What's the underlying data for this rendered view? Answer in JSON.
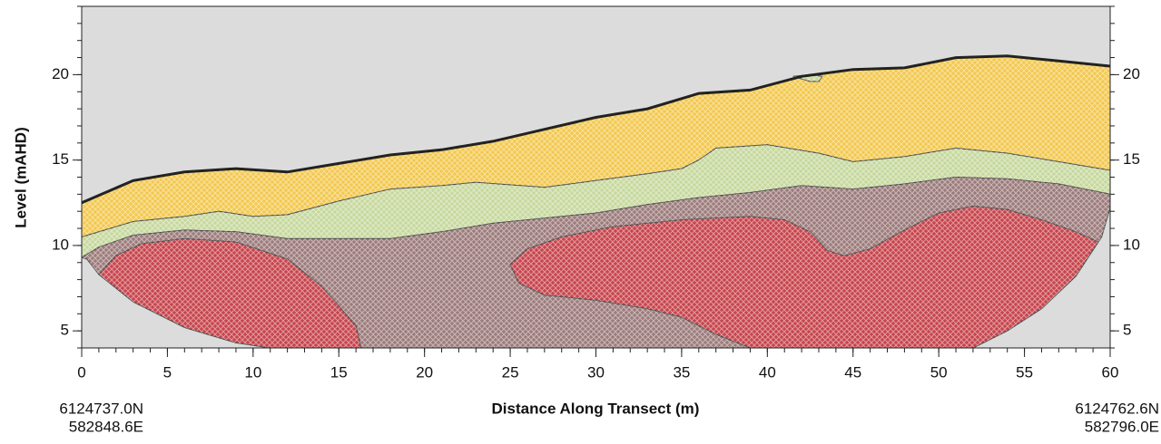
{
  "chart_data": {
    "type": "section",
    "xlabel": "Distance Along Transect (m)",
    "ylabel": "Level (mAHD)",
    "start_label": [
      "6124737.0N",
      "582848.6E"
    ],
    "end_label": [
      "6124762.6N",
      "582796.0E"
    ],
    "xlim": [
      0,
      60
    ],
    "ylim": [
      4,
      24
    ],
    "xticks": [
      0,
      5,
      10,
      15,
      20,
      25,
      30,
      35,
      40,
      45,
      50,
      55,
      60
    ],
    "yticks": [
      5,
      10,
      15,
      20
    ],
    "xminorticks": [
      0,
      1,
      2,
      3,
      4,
      5,
      6,
      7,
      8,
      9,
      10,
      11,
      12,
      13,
      14,
      15,
      16,
      17,
      18,
      19,
      20,
      21,
      22,
      23,
      24,
      25,
      26,
      27,
      28,
      29,
      30,
      31,
      32,
      33,
      34,
      35,
      36,
      37,
      38,
      39,
      40,
      41,
      42,
      43,
      44,
      45,
      46,
      47,
      48,
      49,
      50,
      51,
      52,
      53,
      54,
      55,
      56,
      57,
      58,
      59,
      60
    ],
    "yminorticks": [
      4,
      5,
      6,
      7,
      8,
      9,
      10,
      11,
      12,
      13,
      14,
      15,
      16,
      17,
      18,
      19,
      20,
      21,
      22,
      23,
      24
    ],
    "background": "#dcdcdc",
    "areas": [
      {
        "color": "#f2c84e",
        "x": [
          0,
          3,
          6,
          9,
          12,
          15,
          18,
          21,
          24,
          27,
          30,
          33,
          36,
          39,
          42,
          45,
          48,
          51,
          54,
          57,
          60,
          60,
          57,
          54,
          51,
          48,
          45,
          43,
          40,
          37,
          36,
          35,
          33,
          30,
          27,
          23,
          21,
          18,
          15,
          12,
          10,
          8,
          6,
          3,
          0
        ],
        "y": [
          12.5,
          13.8,
          14.3,
          14.5,
          14.3,
          14.8,
          15.3,
          15.6,
          16.1,
          16.8,
          17.5,
          18.0,
          18.9,
          19.1,
          19.9,
          20.3,
          20.4,
          21.0,
          21.1,
          20.8,
          20.5,
          14.4,
          14.9,
          15.4,
          15.7,
          15.2,
          14.9,
          15.4,
          15.9,
          15.7,
          15.0,
          14.5,
          14.2,
          13.8,
          13.4,
          13.7,
          13.5,
          13.3,
          12.6,
          11.8,
          11.7,
          12.0,
          11.7,
          11.4,
          10.5
        ]
      },
      {
        "color": "#c6d89c",
        "x": [
          0,
          3,
          6,
          8,
          10,
          12,
          15,
          18,
          21,
          23,
          27,
          30,
          33,
          35,
          36,
          37,
          40,
          43,
          45,
          48,
          51,
          54,
          57,
          60,
          60,
          57,
          54,
          51,
          48,
          45,
          42,
          39,
          36,
          33,
          30,
          27,
          24,
          21,
          18,
          15,
          12,
          9,
          6,
          3,
          1,
          0
        ],
        "y": [
          10.5,
          11.4,
          11.7,
          12.0,
          11.7,
          11.8,
          12.6,
          13.3,
          13.5,
          13.7,
          13.4,
          13.8,
          14.2,
          14.5,
          15.0,
          15.7,
          15.9,
          15.4,
          14.9,
          15.2,
          15.7,
          15.4,
          14.9,
          14.4,
          13.0,
          13.6,
          13.9,
          14.0,
          13.6,
          13.3,
          13.5,
          13.1,
          12.8,
          12.4,
          11.9,
          11.6,
          11.3,
          10.8,
          10.4,
          10.4,
          10.4,
          10.8,
          10.9,
          10.6,
          9.9,
          9.3
        ]
      },
      {
        "color": "#9c7b7b",
        "x": [
          0,
          1,
          3,
          6,
          9,
          12,
          15,
          18,
          21,
          24,
          27,
          30,
          33,
          36,
          39,
          42,
          45,
          48,
          51,
          54,
          57,
          60,
          60,
          59.5,
          58,
          56,
          54,
          52,
          11,
          9,
          6,
          3,
          1,
          0.3
        ],
        "y": [
          9.3,
          9.9,
          10.6,
          10.9,
          10.8,
          10.4,
          10.4,
          10.4,
          10.8,
          11.3,
          11.6,
          11.9,
          12.4,
          12.8,
          13.1,
          13.5,
          13.3,
          13.6,
          14.0,
          13.9,
          13.6,
          13.0,
          12.2,
          10.5,
          8.2,
          6.3,
          5.0,
          4.0,
          4.0,
          4.3,
          5.2,
          6.7,
          8.3,
          9.2
        ]
      },
      {
        "color": "#c7444c",
        "x": [
          1,
          2,
          3.5,
          6,
          9,
          12,
          14,
          16,
          16.3,
          11,
          9,
          6,
          3
        ],
        "y": [
          8.3,
          9.4,
          10.1,
          10.4,
          10.2,
          9.2,
          7.6,
          5.3,
          4.0,
          4.0,
          4.3,
          5.2,
          6.7
        ]
      },
      {
        "color": "#c7444c",
        "x": [
          25,
          26,
          28,
          31,
          35,
          39,
          41,
          42.5,
          43.5,
          44.5,
          46,
          48,
          50,
          52,
          54,
          56,
          58,
          59.3,
          58,
          56,
          54,
          52,
          39,
          37,
          35,
          33,
          30,
          27,
          25.5
        ],
        "y": [
          8.9,
          9.8,
          10.5,
          11.1,
          11.5,
          11.7,
          11.5,
          10.8,
          9.7,
          9.4,
          9.8,
          10.9,
          11.9,
          12.3,
          12.1,
          11.5,
          10.8,
          10.2,
          8.2,
          6.3,
          5.0,
          4.0,
          4.0,
          4.8,
          5.8,
          6.3,
          6.8,
          7.1,
          7.8
        ]
      },
      {
        "color": "#c6d89c",
        "x": [
          41.5,
          42.5,
          43.2,
          43.0,
          42.5
        ],
        "y": [
          19.9,
          20.0,
          19.9,
          19.6,
          19.6
        ]
      }
    ],
    "surface": {
      "color": "#222222",
      "x": [
        0,
        3,
        6,
        9,
        12,
        15,
        18,
        21,
        24,
        27,
        30,
        33,
        36,
        39,
        42,
        45,
        48,
        51,
        54,
        57,
        60
      ],
      "y": [
        12.5,
        13.8,
        14.3,
        14.5,
        14.3,
        14.8,
        15.3,
        15.6,
        16.1,
        16.8,
        17.5,
        18.0,
        18.9,
        19.1,
        19.9,
        20.3,
        20.4,
        21.0,
        21.1,
        20.8,
        20.5
      ]
    }
  }
}
